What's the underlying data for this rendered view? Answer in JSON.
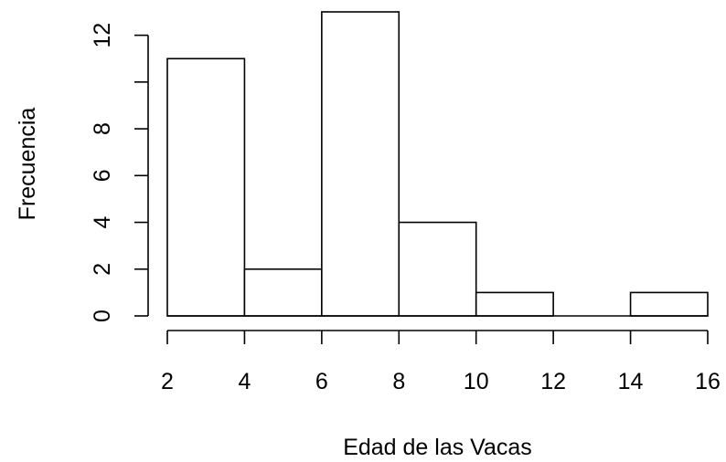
{
  "chart_data": {
    "type": "bar",
    "subtype": "histogram",
    "xlabel": "Edad de las Vacas",
    "ylabel": "Frecuencia",
    "bins": [
      {
        "start": 2,
        "end": 4,
        "count": 11
      },
      {
        "start": 4,
        "end": 6,
        "count": 2
      },
      {
        "start": 6,
        "end": 8,
        "count": 13
      },
      {
        "start": 8,
        "end": 10,
        "count": 4
      },
      {
        "start": 10,
        "end": 12,
        "count": 1
      },
      {
        "start": 12,
        "end": 14,
        "count": 0
      },
      {
        "start": 14,
        "end": 16,
        "count": 1
      }
    ],
    "xlim": [
      2,
      16
    ],
    "ylim": [
      0,
      13
    ],
    "x_ticks": [
      2,
      4,
      6,
      8,
      10,
      12,
      14,
      16
    ],
    "y_ticks": [
      0,
      2,
      4,
      6,
      8,
      10,
      12
    ],
    "y_tick_labels": [
      "0",
      "2",
      "4",
      "6",
      "8",
      "",
      "12"
    ],
    "grid": false,
    "colors": {
      "bar_fill": "#ffffff",
      "bar_stroke": "#000000",
      "axis": "#000000"
    }
  }
}
